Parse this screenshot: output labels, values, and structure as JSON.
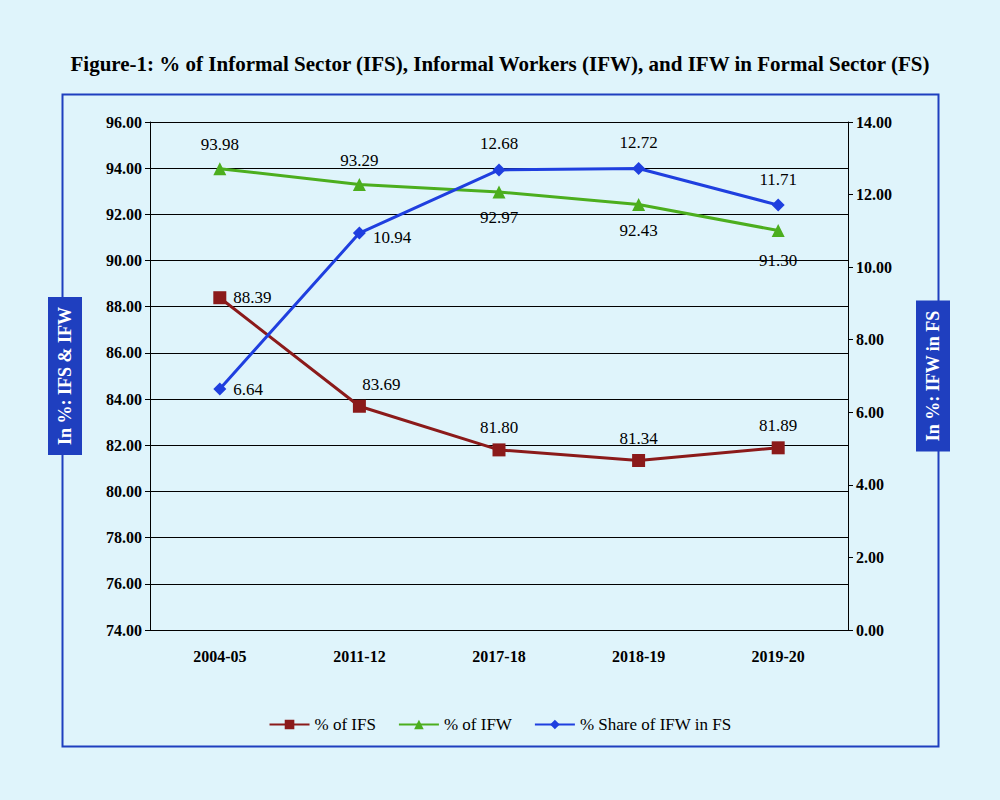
{
  "chart_data": {
    "type": "line",
    "title": "Figure-1: % of Informal Sector (IFS), Informal Workers (IFW), and IFW in Formal Sector (FS)",
    "categories": [
      "2004-05",
      "2011-12",
      "2017-18",
      "2018-19",
      "2019-20"
    ],
    "y_label": "In %: IFS & IFW",
    "y2_label": "In %: IFW in FS",
    "ylim": [
      74,
      96
    ],
    "yticks": [
      {
        "value": 74,
        "label": "74.00"
      },
      {
        "value": 76,
        "label": "76.00"
      },
      {
        "value": 78,
        "label": "78.00"
      },
      {
        "value": 80,
        "label": "80.00"
      },
      {
        "value": 82,
        "label": "82.00"
      },
      {
        "value": 84,
        "label": "84.00"
      },
      {
        "value": 86,
        "label": "86.00"
      },
      {
        "value": 88,
        "label": "88.00"
      },
      {
        "value": 90,
        "label": "90.00"
      },
      {
        "value": 92,
        "label": "92.00"
      },
      {
        "value": 94,
        "label": "94.00"
      },
      {
        "value": 96,
        "label": "96.00"
      }
    ],
    "y2lim": [
      0,
      14
    ],
    "y2ticks": [
      {
        "value": 0,
        "label": "0.00"
      },
      {
        "value": 2,
        "label": "2.00"
      },
      {
        "value": 4,
        "label": "4.00"
      },
      {
        "value": 6,
        "label": "6.00"
      },
      {
        "value": 8,
        "label": "8.00"
      },
      {
        "value": 10,
        "label": "10.00"
      },
      {
        "value": 12,
        "label": "12.00"
      },
      {
        "value": 14,
        "label": "14.00"
      }
    ],
    "grid": true,
    "legend": "bottom",
    "data_labels": true,
    "series": [
      {
        "name": "% of IFS",
        "color": "#8b1a1a",
        "marker": "square",
        "values": [
          88.39,
          83.69,
          81.8,
          81.34,
          81.89
        ],
        "value_labels": [
          "88.39",
          "83.69",
          "81.80",
          "81.34",
          "81.89"
        ]
      },
      {
        "name": "% of IFW",
        "color": "#4cae1e",
        "marker": "triangle",
        "values": [
          93.98,
          93.29,
          92.97,
          92.43,
          91.3
        ],
        "value_labels": [
          "93.98",
          "93.29",
          "92.97",
          "92.43",
          "91.30"
        ]
      },
      {
        "name": "% Share of IFW in FS",
        "color": "#1f3fdf",
        "marker": "diamond",
        "axis": "y2",
        "values": [
          6.64,
          10.94,
          12.68,
          12.72,
          11.71
        ],
        "value_labels": [
          "6.64",
          "10.94",
          "12.68",
          "12.72",
          "11.71"
        ]
      }
    ]
  }
}
